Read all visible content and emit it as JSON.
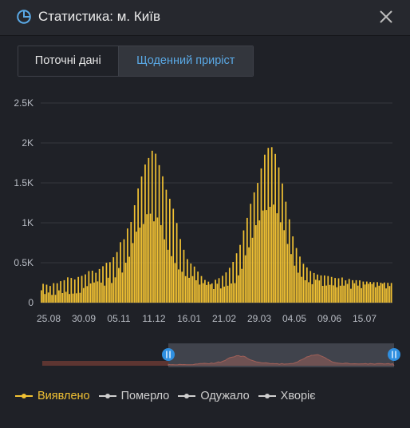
{
  "header": {
    "title": "Статистика: м. Київ",
    "icon": "pie-chart-icon",
    "close_icon": "close-icon"
  },
  "tabs": [
    {
      "label": "Поточні дані",
      "active": false
    },
    {
      "label": "Щоденний приріст",
      "active": true
    }
  ],
  "colors": {
    "accent": "#f2c233",
    "tab_active": "#5aa9e6",
    "inactive_series": "#cfcfcf",
    "background": "#1f2127"
  },
  "chart_data": {
    "type": "bar",
    "title": "",
    "xlabel": "",
    "ylabel": "",
    "ylim": [
      0,
      2500
    ],
    "y_ticks": [
      "0",
      "0.5K",
      "1K",
      "1.5K",
      "2K",
      "2.5K"
    ],
    "x_tick_labels": [
      "25.08",
      "30.09",
      "05.11",
      "11.12",
      "16.01",
      "21.02",
      "29.03",
      "04.05",
      "09.06",
      "15.07"
    ],
    "grid": true,
    "legend_position": "bottom-left",
    "series": [
      {
        "name": "Виявлено",
        "color": "#f2c233",
        "visible": true,
        "values": [
          155,
          236,
          108,
          225,
          127,
          209,
          97,
          244,
          98,
          243,
          154,
          269,
          120,
          281,
          136,
          317,
          108,
          309,
          113,
          290,
          117,
          322,
          123,
          335,
          183,
          354,
          207,
          395,
          240,
          400,
          252,
          374,
          266,
          421,
          251,
          456,
          213,
          499,
          312,
          507,
          246,
          569,
          317,
          633,
          434,
          757,
          377,
          794,
          500,
          929,
          575,
          1010,
          746,
          1220,
          889,
          1430,
          940,
          1580,
          985,
          1730,
          1108,
          1811,
          1114,
          1902,
          1018,
          1865,
          1066,
          1722,
          971,
          1582,
          793,
          1414,
          662,
          1301,
          582,
          1176,
          496,
          997,
          416,
          797,
          387,
          662,
          332,
          545,
          311,
          490,
          332,
          452,
          280,
          389,
          226,
          333,
          244,
          284,
          221,
          263,
          228,
          241,
          170,
          286,
          237,
          307,
          178,
          336,
          201,
          379,
          212,
          436,
          240,
          510,
          244,
          618,
          341,
          723,
          423,
          905,
          593,
          1061,
          693,
          1238,
          812,
          1381,
          970,
          1499,
          1030,
          1681,
          1154,
          1853,
          1159,
          1938,
          1200,
          1947,
          1228,
          1862,
          1119,
          1694,
          1007,
          1492,
          907,
          1264,
          735,
          1044,
          608,
          830,
          463,
          684,
          375,
          577,
          323,
          487,
          280,
          441,
          256,
          396,
          231,
          371,
          287,
          352,
          278,
          341,
          210,
          340,
          214,
          333,
          222,
          322,
          216,
          309,
          193,
          305,
          212,
          315,
          213,
          279,
          235,
          297,
          174,
          281,
          243,
          281,
          213,
          279,
          181,
          264,
          227,
          264,
          236,
          259,
          233,
          256,
          193,
          257,
          212,
          250,
          238,
          252,
          178,
          248,
          208,
          246
        ]
      },
      {
        "name": "Померло",
        "color": "#cfcfcf",
        "visible": false
      },
      {
        "name": "Одужало",
        "color": "#cfcfcf",
        "visible": false
      },
      {
        "name": "Хворіє",
        "color": "#cfcfcf",
        "visible": false
      }
    ]
  },
  "range_selector": {
    "start_fraction": 0.0,
    "end_fraction": 1.0
  }
}
